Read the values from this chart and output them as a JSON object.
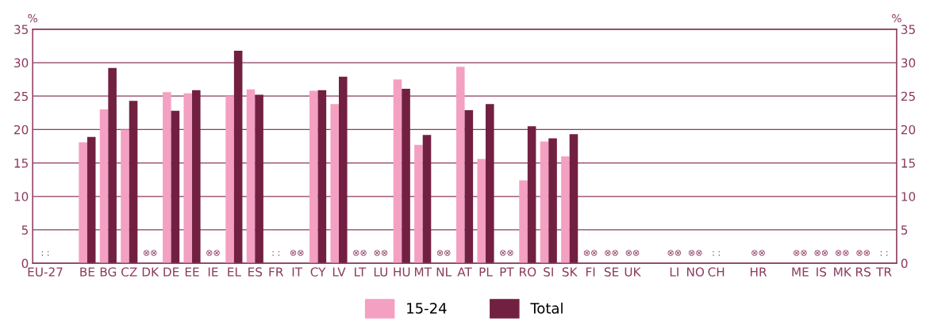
{
  "chart_data": {
    "type": "bar",
    "ylabel": "%",
    "y2label": "%",
    "categories": [
      "EU-27",
      null,
      "BE",
      "BG",
      "CZ",
      "DK",
      "DE",
      "EE",
      "IE",
      "EL",
      "ES",
      "FR",
      "IT",
      "CY",
      "LV",
      "LT",
      "LU",
      "HU",
      "MT",
      "NL",
      "AT",
      "PL",
      "PT",
      "RO",
      "SI",
      "SK",
      "FI",
      "SE",
      "UK",
      null,
      "LI",
      "NO",
      "CH",
      null,
      "HR",
      null,
      "ME",
      "IS",
      "MK",
      "RS",
      "TR"
    ],
    "series": [
      {
        "name": "15-24",
        "color": "#f4a0c2",
        "values": [
          null,
          null,
          18.1,
          23.0,
          20.0,
          null,
          25.6,
          25.4,
          null,
          25.0,
          26.0,
          null,
          null,
          25.8,
          23.8,
          null,
          null,
          27.5,
          17.7,
          null,
          29.4,
          15.6,
          null,
          12.4,
          18.2,
          16.0,
          null,
          null,
          null,
          null,
          null,
          null,
          null,
          null,
          null,
          null,
          null,
          null,
          null,
          null,
          null
        ]
      },
      {
        "name": "Total",
        "color": "#722042",
        "values": [
          null,
          null,
          18.9,
          29.2,
          24.3,
          null,
          22.8,
          25.9,
          null,
          31.8,
          25.2,
          null,
          null,
          25.9,
          27.9,
          null,
          null,
          26.1,
          19.2,
          null,
          22.9,
          23.8,
          null,
          20.5,
          18.7,
          19.3,
          null,
          null,
          null,
          null,
          null,
          null,
          null,
          null,
          null,
          null,
          null,
          null,
          null,
          null,
          null
        ]
      }
    ],
    "annotations": [
      ": :",
      "⊗⊗",
      "⊗⊗",
      ": :",
      "⊗⊗",
      "⊗⊗",
      "⊗⊗",
      "⊗⊗",
      "⊗⊗",
      "⊗⊗",
      "⊗⊗",
      "⊗⊗",
      "⊗⊗",
      "⊗⊗",
      ": :",
      "⊗⊗",
      "⊗⊗",
      "⊗⊗",
      "⊗⊗",
      "⊗⊗",
      ": :"
    ],
    "ylim": [
      0,
      35
    ],
    "yticks": [
      0,
      5,
      10,
      15,
      20,
      25,
      30,
      35
    ],
    "y2lim": [
      0,
      35
    ],
    "y2ticks": [
      0,
      5,
      10,
      15,
      20,
      25,
      30,
      35
    ],
    "grid": "y",
    "legend": "bottom"
  }
}
